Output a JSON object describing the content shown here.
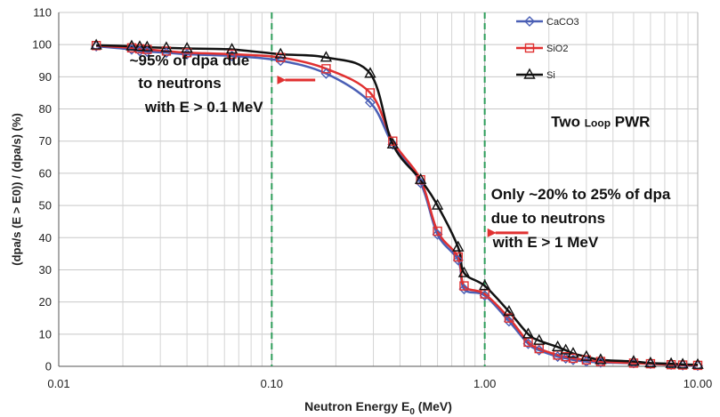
{
  "chart_data": {
    "type": "line",
    "title": "",
    "xlabel": "Neutron Energy E",
    "xlabel_sub": "0",
    "xlabel_unit": "(MeV)",
    "ylabel": "(dpa/s (E > E0)) / (dpa/s) (%)",
    "x_scale": "log",
    "xlim": [
      0.01,
      10
    ],
    "ylim": [
      0,
      110
    ],
    "x_ticks": [
      0.01,
      0.1,
      1,
      10
    ],
    "x_tick_labels": [
      "0.01",
      "0.10",
      "1.00",
      "10.00"
    ],
    "y_ticks": [
      0,
      10,
      20,
      30,
      40,
      50,
      60,
      70,
      80,
      90,
      100,
      110
    ],
    "y_tick_labels": [
      "0",
      "10",
      "20",
      "30",
      "40",
      "50",
      "60",
      "70",
      "80",
      "90",
      "100",
      "110"
    ],
    "grid": true,
    "legend_position": "top-right",
    "reference_lines_x": [
      0.1,
      1.0
    ],
    "series": [
      {
        "name": "CaCO3",
        "color": "#4a5fb5",
        "marker": "diamond",
        "x": [
          0.015,
          0.022,
          0.024,
          0.026,
          0.032,
          0.04,
          0.065,
          0.11,
          0.18,
          0.29,
          0.37,
          0.5,
          0.6,
          0.75,
          0.8,
          1.0,
          1.3,
          1.6,
          1.8,
          2.2,
          2.4,
          2.6,
          3.0,
          3.5,
          5.0,
          6.0,
          7.5,
          8.5,
          10.0
        ],
        "y": [
          99.5,
          98.5,
          98.0,
          97.8,
          97.5,
          97.0,
          96.5,
          95.0,
          91.0,
          82.0,
          69.0,
          57.0,
          41.0,
          33.0,
          24.0,
          22.0,
          14.0,
          7.0,
          5.0,
          3.0,
          2.5,
          2.0,
          1.5,
          1.2,
          1.0,
          0.8,
          0.5,
          0.3,
          0.2
        ]
      },
      {
        "name": "SiO2",
        "color": "#e03030",
        "marker": "square",
        "x": [
          0.015,
          0.022,
          0.024,
          0.026,
          0.032,
          0.04,
          0.065,
          0.11,
          0.18,
          0.29,
          0.37,
          0.5,
          0.6,
          0.75,
          0.8,
          1.0,
          1.3,
          1.6,
          1.8,
          2.2,
          2.4,
          2.6,
          3.0,
          3.5,
          5.0,
          6.0,
          7.5,
          8.5,
          10.0
        ],
        "y": [
          99.7,
          99.0,
          98.7,
          98.5,
          98.0,
          97.5,
          97.0,
          96.0,
          92.5,
          85.0,
          70.0,
          58.0,
          42.0,
          34.0,
          25.0,
          22.5,
          15.0,
          7.5,
          5.5,
          3.5,
          3.0,
          2.5,
          2.0,
          1.5,
          1.0,
          0.8,
          0.5,
          0.4,
          0.3
        ]
      },
      {
        "name": "Si",
        "color": "#111111",
        "marker": "triangle",
        "x": [
          0.015,
          0.022,
          0.024,
          0.026,
          0.032,
          0.04,
          0.065,
          0.11,
          0.18,
          0.29,
          0.37,
          0.5,
          0.6,
          0.75,
          0.8,
          1.0,
          1.3,
          1.6,
          1.8,
          2.2,
          2.4,
          2.6,
          3.0,
          3.5,
          5.0,
          6.0,
          7.5,
          8.5,
          10.0
        ],
        "y": [
          99.8,
          99.5,
          99.3,
          99.2,
          99.0,
          98.8,
          98.5,
          97.0,
          96.0,
          91.0,
          69.0,
          58.0,
          50.0,
          37.0,
          29.0,
          25.0,
          17.0,
          10.0,
          8.0,
          6.0,
          5.0,
          4.0,
          3.0,
          2.0,
          1.5,
          1.0,
          0.8,
          0.6,
          0.5
        ]
      }
    ],
    "annotations": [
      {
        "text": "~95% of dpa due",
        "x": 0.0215,
        "y": 93.5
      },
      {
        "text": "to neutrons",
        "x": 0.0236,
        "y": 86.5
      },
      {
        "text": "with E > 0.1 MeV",
        "x": 0.0254,
        "y": 79.0
      },
      {
        "text": "Only ~20% to 25% of dpa",
        "x": 1.07,
        "y": 52.0
      },
      {
        "text": "due to neutrons",
        "x": 1.07,
        "y": 44.5
      },
      {
        "text": "with E > 1 MeV",
        "x": 1.09,
        "y": 37.0
      }
    ],
    "two_loop_label": {
      "main": "Two ",
      "small": "Loop",
      "tail": " PWR",
      "x": 2.05,
      "y": 74.5
    },
    "arrows": [
      {
        "from_x": 0.16,
        "to_x": 0.105,
        "y": 89.0,
        "color": "#e03030"
      },
      {
        "from_x": 1.6,
        "to_x": 1.02,
        "y": 41.5,
        "color": "#e03030"
      }
    ]
  }
}
